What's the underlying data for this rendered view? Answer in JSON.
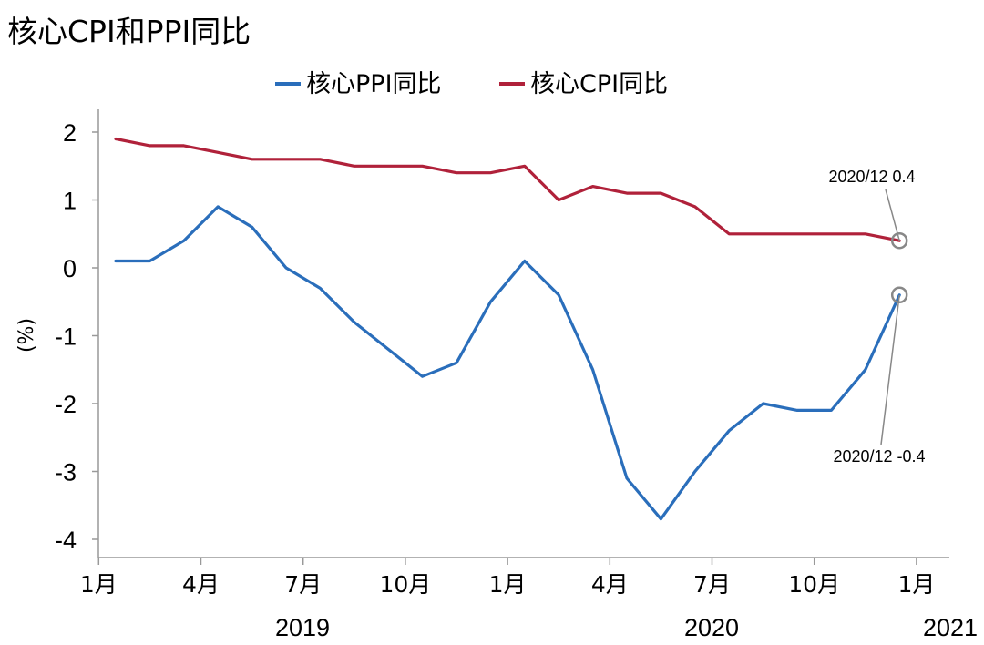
{
  "chart_data": {
    "type": "line",
    "title": "核心CPI和PPI同比",
    "ylabel": "(%)",
    "ylim": [
      -4,
      2
    ],
    "yticks": [
      2,
      1,
      0,
      -1,
      -2,
      -3,
      -4
    ],
    "xtick_labels": [
      "1月",
      "4月",
      "7月",
      "10月",
      "1月",
      "4月",
      "7月",
      "10月",
      "1月"
    ],
    "year_labels": [
      "2019",
      "2020",
      "2021"
    ],
    "x": [
      "2019-01",
      "2019-02",
      "2019-03",
      "2019-04",
      "2019-05",
      "2019-06",
      "2019-07",
      "2019-08",
      "2019-09",
      "2019-10",
      "2019-11",
      "2019-12",
      "2020-01",
      "2020-02",
      "2020-03",
      "2020-04",
      "2020-05",
      "2020-06",
      "2020-07",
      "2020-08",
      "2020-09",
      "2020-10",
      "2020-11",
      "2020-12"
    ],
    "legend_position": "top-center",
    "grid": false,
    "series": [
      {
        "name": "核心PPI同比",
        "color": "#2a6ebb",
        "values": [
          0.1,
          0.1,
          0.4,
          0.9,
          0.6,
          0.0,
          -0.3,
          -0.8,
          -1.2,
          -1.6,
          -1.4,
          -0.5,
          0.1,
          -0.4,
          -1.5,
          -3.1,
          -3.7,
          -3.0,
          -2.4,
          -2.0,
          -2.1,
          -2.1,
          -1.5,
          -0.4
        ]
      },
      {
        "name": "核心CPI同比",
        "color": "#b0213a",
        "values": [
          1.9,
          1.8,
          1.8,
          1.7,
          1.6,
          1.6,
          1.6,
          1.5,
          1.5,
          1.5,
          1.4,
          1.4,
          1.5,
          1.0,
          1.2,
          1.1,
          1.1,
          0.9,
          0.5,
          0.5,
          0.5,
          0.5,
          0.5,
          0.4
        ]
      }
    ],
    "annotations": [
      {
        "text": "2020/12 0.4",
        "series": 1,
        "index": 23
      },
      {
        "text": "2020/12 -0.4",
        "series": 0,
        "index": 23
      }
    ]
  }
}
